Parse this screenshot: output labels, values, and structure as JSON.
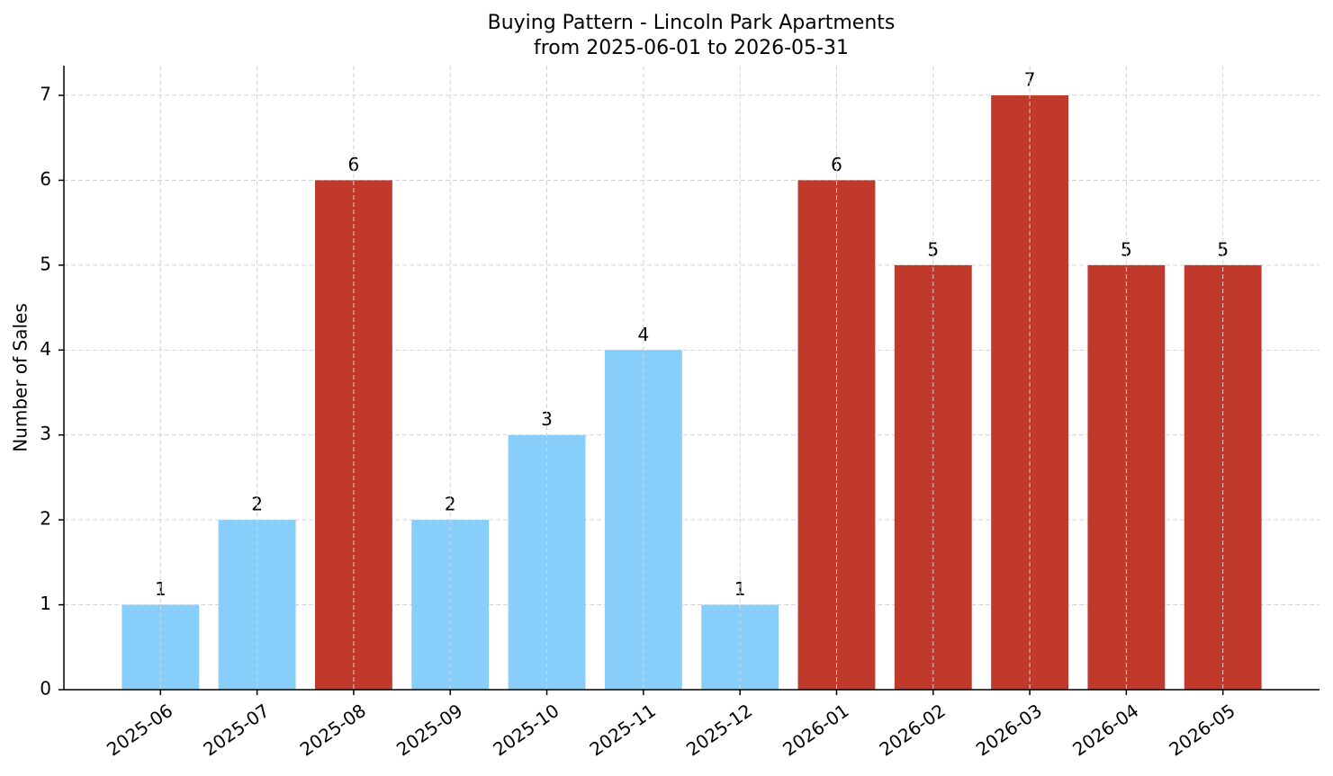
{
  "chart_data": {
    "type": "bar",
    "title": "Buying Pattern - Lincoln Park Apartments",
    "subtitle": "from 2025-06-01 to 2026-05-31",
    "y_label": "Number of Sales",
    "categories": [
      "2025-06",
      "2025-07",
      "2025-08",
      "2025-09",
      "2025-10",
      "2025-11",
      "2025-12",
      "2026-01",
      "2026-02",
      "2026-03",
      "2026-04",
      "2026-05"
    ],
    "values": [
      1,
      2,
      6,
      2,
      3,
      4,
      1,
      6,
      5,
      7,
      5,
      5
    ],
    "colors": [
      "#87cefa",
      "#87cefa",
      "#c0392b",
      "#87cefa",
      "#87cefa",
      "#87cefa",
      "#87cefa",
      "#c0392b",
      "#c0392b",
      "#c0392b",
      "#c0392b",
      "#c0392b"
    ],
    "ylim": [
      0,
      7.35
    ],
    "yticks": [
      0,
      1,
      2,
      3,
      4,
      5,
      6,
      7
    ],
    "grid": true
  }
}
